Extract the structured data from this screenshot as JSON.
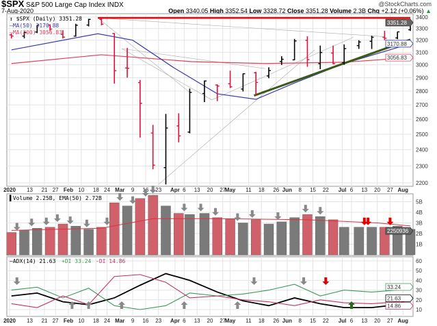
{
  "header": {
    "symbol": "$SPX",
    "name": "S&P 500 Large Cap Index",
    "exchange": "INDX",
    "brand": "@StockCharts.com",
    "date": "7-Aug-2020",
    "quote": {
      "open_label": "Open",
      "open": "3340.05",
      "high_label": "High",
      "high": "3352.54",
      "low_label": "Low",
      "low": "3328.72",
      "close_label": "Close",
      "close": "3351.28",
      "volume_label": "Volume",
      "volume": "2.3B",
      "chg_label": "Chg",
      "chg": "+2.12 (+0.06%)",
      "chg_icon": "up-triangle-icon"
    }
  },
  "legend": {
    "price": "$SPX (Daily) 3351.28",
    "ma50": "MA(50) 3170.88",
    "ma200": "MA(200) 3056.83",
    "volume": "Volume 2.25B, EMA(50) 2.72B",
    "adx": "ADX(14) 21.63",
    "pdi": "+DI 33.24",
    "mdi": "-DI 14.86"
  },
  "tags": {
    "close": "3351.28",
    "ma50": "3170.88",
    "ma200": "3056.83",
    "volume": "2250936",
    "pdi": "33.24",
    "adx": "21.63",
    "mdi": "14.86"
  },
  "colors": {
    "up": "#000000",
    "down": "#e0103a",
    "ma50": "#3a3aa8",
    "ma200": "#e0405a",
    "resistance": "#ff0000",
    "trendline": "#3a5a1a",
    "pdi": "#3a9a5a",
    "mdi": "#c0306a",
    "vol_up": "#7a7a7a",
    "vol_down": "#d0606a"
  },
  "chart_data": [
    {
      "type": "ohlc",
      "title": "$SPX (Daily)",
      "scale": "log",
      "ylim": [
        2180,
        3420
      ],
      "yticks": [
        3400,
        3300,
        3200,
        3100,
        3000,
        2900,
        2800,
        2700,
        2600,
        2500,
        2400,
        2300,
        2200
      ],
      "grid": true,
      "x_ticks": [
        {
          "label": "2020",
          "date": "2020-01-02",
          "bold": true
        },
        {
          "label": "13",
          "date": "2020-01-13"
        },
        {
          "label": "21",
          "date": "2020-01-21"
        },
        {
          "label": "27",
          "date": "2020-01-27"
        },
        {
          "label": "Feb",
          "date": "2020-02-03",
          "bold": true
        },
        {
          "label": "10",
          "date": "2020-02-10"
        },
        {
          "label": "18",
          "date": "2020-02-18"
        },
        {
          "label": "24",
          "date": "2020-02-24"
        },
        {
          "label": "Mar",
          "date": "2020-03-02",
          "bold": true
        },
        {
          "label": "9",
          "date": "2020-03-09"
        },
        {
          "label": "16",
          "date": "2020-03-16"
        },
        {
          "label": "23",
          "date": "2020-03-23"
        },
        {
          "label": "Apr",
          "date": "2020-04-01",
          "bold": true
        },
        {
          "label": "6",
          "date": "2020-04-06"
        },
        {
          "label": "13",
          "date": "2020-04-13"
        },
        {
          "label": "20",
          "date": "2020-04-20"
        },
        {
          "label": "27",
          "date": "2020-04-27"
        },
        {
          "label": "May",
          "date": "2020-05-01",
          "bold": true
        },
        {
          "label": "11",
          "date": "2020-05-11"
        },
        {
          "label": "18",
          "date": "2020-05-18"
        },
        {
          "label": "26",
          "date": "2020-05-26"
        },
        {
          "label": "Jun",
          "date": "2020-06-01",
          "bold": true
        },
        {
          "label": "8",
          "date": "2020-06-08"
        },
        {
          "label": "15",
          "date": "2020-06-15"
        },
        {
          "label": "22",
          "date": "2020-06-22"
        },
        {
          "label": "Jul",
          "date": "2020-07-01",
          "bold": true
        },
        {
          "label": "6",
          "date": "2020-07-06"
        },
        {
          "label": "13",
          "date": "2020-07-13"
        },
        {
          "label": "20",
          "date": "2020-07-20"
        },
        {
          "label": "27",
          "date": "2020-07-27"
        },
        {
          "label": "Aug",
          "date": "2020-08-03",
          "bold": true
        }
      ],
      "bars": [
        [
          "2020-01-03",
          3245,
          3258,
          3214,
          3235
        ],
        [
          "2020-01-10",
          3235,
          3275,
          3215,
          3265
        ],
        [
          "2020-01-17",
          3270,
          3330,
          3260,
          3330
        ],
        [
          "2020-01-24",
          3330,
          3337,
          3280,
          3295
        ],
        [
          "2020-01-31",
          3250,
          3285,
          3214,
          3226
        ],
        [
          "2020-02-07",
          3235,
          3341,
          3230,
          3328
        ],
        [
          "2020-02-14",
          3330,
          3385,
          3318,
          3380
        ],
        [
          "2020-02-21",
          3380,
          3393,
          3328,
          3338
        ],
        [
          "2020-02-28",
          3257,
          3260,
          2855,
          2954
        ],
        [
          "2020-03-06",
          2975,
          3136,
          2900,
          2972
        ],
        [
          "2020-03-13",
          2863,
          2882,
          2478,
          2711
        ],
        [
          "2020-03-20",
          2508,
          2562,
          2280,
          2305
        ],
        [
          "2020-03-27",
          2290,
          2637,
          2191,
          2541
        ],
        [
          "2020-04-03",
          2555,
          2641,
          2447,
          2489
        ],
        [
          "2020-04-09",
          2514,
          2818,
          2506,
          2790
        ],
        [
          "2020-04-17",
          2782,
          2879,
          2720,
          2875
        ],
        [
          "2020-04-24",
          2845,
          2850,
          2727,
          2837
        ],
        [
          "2020-05-01",
          2854,
          2954,
          2822,
          2831
        ],
        [
          "2020-05-08",
          2815,
          2932,
          2797,
          2930
        ],
        [
          "2020-05-15",
          2938,
          2945,
          2766,
          2864
        ],
        [
          "2020-05-22",
          2913,
          2980,
          2896,
          2955
        ],
        [
          "2020-05-29",
          3026,
          3068,
          2999,
          3044
        ],
        [
          "2020-06-05",
          3039,
          3211,
          3036,
          3194
        ],
        [
          "2020-06-12",
          3199,
          3233,
          2984,
          3041
        ],
        [
          "2020-06-19",
          3009,
          3155,
          2966,
          3098
        ],
        [
          "2020-06-26",
          3094,
          3155,
          3004,
          3009
        ],
        [
          "2020-07-02",
          3018,
          3165,
          3000,
          3130
        ],
        [
          "2020-07-10",
          3155,
          3200,
          3128,
          3185
        ],
        [
          "2020-07-17",
          3191,
          3238,
          3127,
          3225
        ],
        [
          "2020-07-24",
          3224,
          3280,
          3200,
          3216
        ],
        [
          "2020-07-31",
          3219,
          3272,
          3209,
          3271
        ],
        [
          "2020-08-07",
          3289,
          3352,
          3279,
          3351
        ]
      ],
      "ma50": [
        [
          "2020-01-03",
          3120
        ],
        [
          "2020-02-19",
          3255
        ],
        [
          "2020-03-09",
          3200
        ],
        [
          "2020-03-31",
          2980
        ],
        [
          "2020-04-24",
          2780
        ],
        [
          "2020-05-15",
          2740
        ],
        [
          "2020-06-05",
          2860
        ],
        [
          "2020-07-02",
          3010
        ],
        [
          "2020-08-07",
          3170.88
        ]
      ],
      "ma200": [
        [
          "2020-01-03",
          3010
        ],
        [
          "2020-02-21",
          3080
        ],
        [
          "2020-04-10",
          3025
        ],
        [
          "2020-05-20",
          3010
        ],
        [
          "2020-07-02",
          3020
        ],
        [
          "2020-08-07",
          3056.83
        ]
      ],
      "resistance": [
        [
          "2020-02-19",
          3393
        ],
        [
          "2020-08-07",
          3393
        ]
      ],
      "trendline": [
        [
          "2020-05-14",
          2767
        ],
        [
          "2020-08-07",
          3205
        ]
      ],
      "fan_lines": [
        [
          [
            "2020-02-19",
            3393
          ],
          [
            "2020-07-24",
            3230
          ]
        ],
        [
          [
            "2020-02-19",
            3393
          ],
          [
            "2020-04-09",
            2790
          ]
        ],
        [
          [
            "2020-03-03",
            3130
          ],
          [
            "2020-04-21",
            2736
          ]
        ],
        [
          [
            "2020-03-03",
            3130
          ],
          [
            "2020-05-20",
            2970
          ]
        ],
        [
          [
            "2020-03-23",
            2191
          ],
          [
            "2020-06-16",
            3120
          ]
        ],
        [
          [
            "2020-04-21",
            2736
          ],
          [
            "2020-07-07",
            3225
          ]
        ]
      ]
    },
    {
      "type": "bar",
      "title": "Volume",
      "unit": "B",
      "yticks": [
        5,
        4,
        3,
        2,
        1
      ],
      "ytick_labels": [
        "5B",
        "4B",
        "3B",
        "2B",
        "1B"
      ],
      "values": [
        [
          "2020-01-03",
          2.1,
          0
        ],
        [
          "2020-01-10",
          2.3,
          1
        ],
        [
          "2020-01-17",
          2.5,
          1
        ],
        [
          "2020-01-24",
          2.6,
          0
        ],
        [
          "2020-01-31",
          2.9,
          0
        ],
        [
          "2020-02-07",
          2.7,
          1
        ],
        [
          "2020-02-14",
          2.4,
          1
        ],
        [
          "2020-02-21",
          2.6,
          0
        ],
        [
          "2020-02-28",
          4.9,
          0
        ],
        [
          "2020-03-06",
          4.6,
          1
        ],
        [
          "2020-03-13",
          5.3,
          0
        ],
        [
          "2020-03-20",
          5.6,
          0
        ],
        [
          "2020-03-27",
          4.6,
          1
        ],
        [
          "2020-04-03",
          3.9,
          0
        ],
        [
          "2020-04-09",
          3.8,
          1
        ],
        [
          "2020-04-17",
          3.9,
          1
        ],
        [
          "2020-04-24",
          3.5,
          0
        ],
        [
          "2020-05-01",
          3.4,
          0
        ],
        [
          "2020-05-08",
          3.0,
          1
        ],
        [
          "2020-05-15",
          3.3,
          0
        ],
        [
          "2020-05-22",
          2.9,
          1
        ],
        [
          "2020-05-29",
          3.1,
          1
        ],
        [
          "2020-06-05",
          3.5,
          1
        ],
        [
          "2020-06-12",
          3.8,
          0
        ],
        [
          "2020-06-19",
          3.6,
          1
        ],
        [
          "2020-06-26",
          3.3,
          0
        ],
        [
          "2020-07-02",
          2.6,
          1
        ],
        [
          "2020-07-10",
          2.6,
          1
        ],
        [
          "2020-07-17",
          2.6,
          1
        ],
        [
          "2020-07-24",
          2.6,
          0
        ],
        [
          "2020-07-31",
          2.7,
          1
        ],
        [
          "2020-08-07",
          2.4,
          1
        ]
      ],
      "ema50": [
        [
          "2020-01-03",
          2.3
        ],
        [
          "2020-02-21",
          2.5
        ],
        [
          "2020-03-20",
          3.4
        ],
        [
          "2020-04-24",
          3.4
        ],
        [
          "2020-06-12",
          3.3
        ],
        [
          "2020-07-20",
          3.0
        ],
        [
          "2020-08-07",
          2.72
        ]
      ],
      "arrows": [
        [
          "2020-01-06",
          "gray"
        ],
        [
          "2020-01-14",
          "gray"
        ],
        [
          "2020-01-22",
          "gray"
        ],
        [
          "2020-01-28",
          "gray"
        ],
        [
          "2020-02-04",
          "gray"
        ],
        [
          "2020-02-13",
          "gray"
        ],
        [
          "2020-02-24",
          "gray"
        ],
        [
          "2020-03-02",
          "gray"
        ],
        [
          "2020-03-09",
          "gray"
        ],
        [
          "2020-03-16",
          "gray"
        ],
        [
          "2020-03-20",
          "gray"
        ],
        [
          "2020-04-06",
          "gray"
        ],
        [
          "2020-04-15",
          "gray"
        ],
        [
          "2020-04-23",
          "gray"
        ],
        [
          "2020-05-05",
          "gray"
        ],
        [
          "2020-05-13",
          "gray"
        ],
        [
          "2020-05-27",
          "gray"
        ],
        [
          "2020-06-11",
          "gray"
        ],
        [
          "2020-06-19",
          "gray"
        ],
        [
          "2020-07-13",
          "red"
        ],
        [
          "2020-07-15",
          "red"
        ],
        [
          "2020-07-27",
          "red"
        ]
      ]
    },
    {
      "type": "line",
      "title": "ADX(14)",
      "yticks": [
        60,
        50,
        40,
        30,
        20,
        10
      ],
      "series": [
        {
          "name": "ADX(14)",
          "color": "#000000",
          "values": [
            [
              "2020-01-03",
              24
            ],
            [
              "2020-01-17",
              27
            ],
            [
              "2020-01-31",
              18
            ],
            [
              "2020-02-14",
              15
            ],
            [
              "2020-02-28",
              22
            ],
            [
              "2020-03-13",
              35
            ],
            [
              "2020-03-27",
              47
            ],
            [
              "2020-04-09",
              40
            ],
            [
              "2020-04-24",
              28
            ],
            [
              "2020-05-08",
              19
            ],
            [
              "2020-05-22",
              14
            ],
            [
              "2020-06-05",
              22
            ],
            [
              "2020-06-19",
              16
            ],
            [
              "2020-07-02",
              12
            ],
            [
              "2020-07-17",
              12
            ],
            [
              "2020-07-31",
              15
            ],
            [
              "2020-08-07",
              21.63
            ]
          ]
        },
        {
          "name": "+DI",
          "color": "#3a9a5a",
          "values": [
            [
              "2020-01-03",
              30
            ],
            [
              "2020-01-17",
              33
            ],
            [
              "2020-01-31",
              22
            ],
            [
              "2020-02-14",
              32
            ],
            [
              "2020-02-28",
              14
            ],
            [
              "2020-03-13",
              10
            ],
            [
              "2020-03-27",
              14
            ],
            [
              "2020-04-09",
              27
            ],
            [
              "2020-04-24",
              24
            ],
            [
              "2020-05-08",
              26
            ],
            [
              "2020-05-22",
              30
            ],
            [
              "2020-06-05",
              36
            ],
            [
              "2020-06-19",
              24
            ],
            [
              "2020-07-02",
              30
            ],
            [
              "2020-07-17",
              28
            ],
            [
              "2020-07-31",
              30
            ],
            [
              "2020-08-07",
              33.24
            ]
          ]
        },
        {
          "name": "-DI",
          "color": "#c0306a",
          "values": [
            [
              "2020-01-03",
              16
            ],
            [
              "2020-01-17",
              12
            ],
            [
              "2020-01-31",
              24
            ],
            [
              "2020-02-14",
              15
            ],
            [
              "2020-02-28",
              44
            ],
            [
              "2020-03-13",
              46
            ],
            [
              "2020-03-27",
              38
            ],
            [
              "2020-04-09",
              22
            ],
            [
              "2020-04-24",
              24
            ],
            [
              "2020-05-08",
              20
            ],
            [
              "2020-05-22",
              18
            ],
            [
              "2020-06-05",
              14
            ],
            [
              "2020-06-19",
              20
            ],
            [
              "2020-07-02",
              17
            ],
            [
              "2020-07-17",
              16
            ],
            [
              "2020-07-31",
              18
            ],
            [
              "2020-08-07",
              14.86
            ]
          ]
        }
      ],
      "arrows": [
        [
          "2020-01-06",
          "gray",
          "down"
        ],
        [
          "2020-02-05",
          "gray",
          "up"
        ],
        [
          "2020-02-14",
          "gray",
          "up"
        ],
        [
          "2020-03-03",
          "gray",
          "up"
        ],
        [
          "2020-04-06",
          "gray",
          "up"
        ],
        [
          "2020-05-05",
          "gray",
          "up"
        ],
        [
          "2020-05-14",
          "gray",
          "down"
        ],
        [
          "2020-06-10",
          "gray",
          "down"
        ],
        [
          "2020-06-22",
          "red",
          "down"
        ],
        [
          "2020-07-06",
          "green",
          "up"
        ]
      ]
    }
  ]
}
